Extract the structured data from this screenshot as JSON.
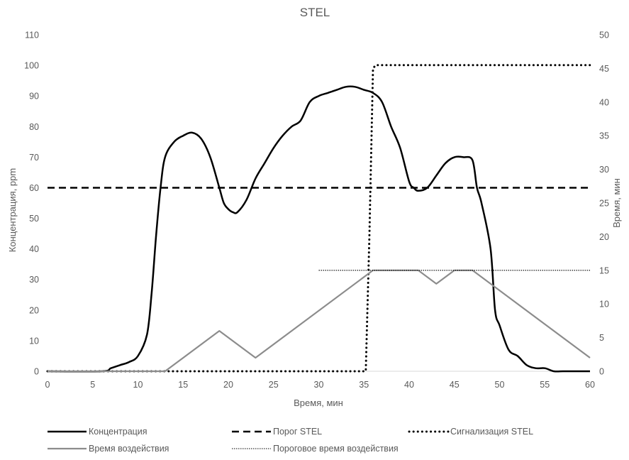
{
  "chart_data": {
    "type": "line",
    "title": "STEL",
    "xlabel": "Время, мин",
    "ylabel": "Концентрация, ppm",
    "y2label": "Время, мин",
    "xlim": [
      0,
      60
    ],
    "ylim": [
      0,
      110
    ],
    "y2lim": [
      0,
      50
    ],
    "x_ticks": [
      0,
      5,
      10,
      15,
      20,
      25,
      30,
      35,
      40,
      45,
      50,
      55,
      60
    ],
    "y_ticks": [
      0,
      10,
      20,
      30,
      40,
      50,
      60,
      70,
      80,
      90,
      100,
      110
    ],
    "y2_ticks": [
      0,
      5,
      10,
      15,
      20,
      25,
      30,
      35,
      40,
      45,
      50
    ],
    "grid": false,
    "legend_position": "bottom",
    "series": [
      {
        "name": "Концентрация",
        "axis": "left",
        "style": "solid",
        "color": "#000000",
        "x": [
          0,
          6,
          7,
          8,
          9,
          10,
          11,
          11.5,
          12,
          12.5,
          13,
          14,
          15,
          16,
          17,
          18,
          19,
          19.5,
          20,
          20.5,
          21,
          22,
          23,
          24,
          25,
          26,
          27,
          28,
          29,
          30,
          31,
          32,
          33,
          34,
          35,
          36,
          37,
          38,
          39,
          40,
          40.5,
          41,
          42,
          43,
          44,
          45,
          46,
          47,
          47.5,
          48,
          49,
          49.5,
          50,
          51,
          52,
          53,
          54,
          55,
          56,
          57,
          58,
          59,
          60
        ],
        "y": [
          0,
          0,
          1,
          2,
          3,
          5,
          12,
          25,
          44,
          60,
          70,
          75,
          77,
          78,
          76,
          70,
          60,
          55,
          53,
          52,
          52,
          56,
          63,
          68,
          73,
          77,
          80,
          82,
          88,
          90,
          91,
          92,
          93,
          93,
          92,
          91,
          88,
          80,
          73,
          62,
          60,
          59,
          60,
          64,
          68,
          70,
          70,
          69,
          60,
          55,
          40,
          20,
          15,
          7,
          5,
          2,
          1,
          1,
          0,
          0,
          0,
          0,
          0
        ]
      },
      {
        "name": "Порог STEL",
        "axis": "left",
        "style": "dashed",
        "color": "#000000",
        "x": [
          0,
          60
        ],
        "y": [
          60,
          60
        ]
      },
      {
        "name": "Сигнализация STEL",
        "axis": "right",
        "style": "dotted-bold",
        "color": "#000000",
        "x": [
          0,
          35.2,
          35.6,
          36,
          36.3,
          60
        ],
        "y": [
          0,
          0,
          20,
          45,
          45.5,
          45.5
        ]
      },
      {
        "name": "Время воздействия",
        "axis": "right",
        "style": "solid",
        "color": "#8c8c8c",
        "x": [
          0,
          13,
          19,
          23,
          36,
          41,
          43,
          45,
          47,
          60
        ],
        "y": [
          0,
          0,
          6,
          2,
          15,
          15,
          13,
          15,
          15,
          2
        ]
      },
      {
        "name": "Пороговое время воздействия",
        "axis": "right",
        "style": "dotted-thin",
        "color": "#000000",
        "x": [
          30,
          60
        ],
        "y": [
          15,
          15
        ]
      }
    ]
  }
}
